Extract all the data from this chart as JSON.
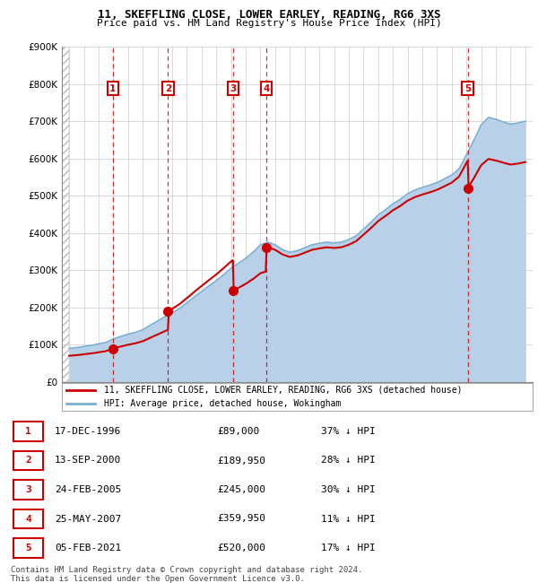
{
  "title1": "11, SKEFFLING CLOSE, LOWER EARLEY, READING, RG6 3XS",
  "title2": "Price paid vs. HM Land Registry's House Price Index (HPI)",
  "transactions": [
    {
      "num": 1,
      "date": "17-DEC-1996",
      "price": 89000,
      "year": 1996.96,
      "pct": "37% ↓ HPI"
    },
    {
      "num": 2,
      "date": "13-SEP-2000",
      "price": 189950,
      "year": 2000.71,
      "pct": "28% ↓ HPI"
    },
    {
      "num": 3,
      "date": "24-FEB-2005",
      "price": 245000,
      "year": 2005.15,
      "pct": "30% ↓ HPI"
    },
    {
      "num": 4,
      "date": "25-MAY-2007",
      "price": 359950,
      "year": 2007.4,
      "pct": "11% ↓ HPI"
    },
    {
      "num": 5,
      "date": "05-FEB-2021",
      "price": 520000,
      "year": 2021.09,
      "pct": "17% ↓ HPI"
    }
  ],
  "legend_line1": "11, SKEFFLING CLOSE, LOWER EARLEY, READING, RG6 3XS (detached house)",
  "legend_line2": "HPI: Average price, detached house, Wokingham",
  "footer": "Contains HM Land Registry data © Crown copyright and database right 2024.\nThis data is licensed under the Open Government Licence v3.0.",
  "table_rows": [
    [
      "1",
      "17-DEC-1996",
      "£89,000",
      "37% ↓ HPI"
    ],
    [
      "2",
      "13-SEP-2000",
      "£189,950",
      "28% ↓ HPI"
    ],
    [
      "3",
      "24-FEB-2005",
      "£245,000",
      "30% ↓ HPI"
    ],
    [
      "4",
      "25-MAY-2007",
      "£359,950",
      "11% ↓ HPI"
    ],
    [
      "5",
      "05-FEB-2021",
      "£520,000",
      "17% ↓ HPI"
    ]
  ],
  "hpi_color": "#b8d0e8",
  "hpi_line_color": "#7aafd4",
  "price_color": "#cc0000",
  "marker_color": "#cc0000",
  "box_color": "#cc0000",
  "grid_color": "#cccccc",
  "bg_color": "#ffffff",
  "xmin": 1993.5,
  "xmax": 2025.5,
  "ymin": 0,
  "ymax": 900000,
  "hpi_years": [
    1994,
    1994.5,
    1995,
    1995.5,
    1996,
    1996.5,
    1997,
    1997.5,
    1998,
    1998.5,
    1999,
    1999.5,
    2000,
    2000.5,
    2001,
    2001.5,
    2002,
    2002.5,
    2003,
    2003.5,
    2004,
    2004.5,
    2005,
    2005.5,
    2006,
    2006.5,
    2007,
    2007.5,
    2008,
    2008.5,
    2009,
    2009.5,
    2010,
    2010.5,
    2011,
    2011.5,
    2012,
    2012.5,
    2013,
    2013.5,
    2014,
    2014.5,
    2015,
    2015.5,
    2016,
    2016.5,
    2017,
    2017.5,
    2018,
    2018.5,
    2019,
    2019.5,
    2020,
    2020.5,
    2021,
    2021.5,
    2022,
    2022.5,
    2023,
    2023.5,
    2024,
    2024.5,
    2025
  ],
  "hpi_values": [
    90000,
    92000,
    95000,
    98000,
    102000,
    106000,
    115000,
    122000,
    128000,
    133000,
    140000,
    152000,
    163000,
    175000,
    185000,
    197000,
    212000,
    228000,
    243000,
    258000,
    272000,
    288000,
    305000,
    318000,
    332000,
    348000,
    368000,
    375000,
    368000,
    355000,
    348000,
    352000,
    360000,
    368000,
    372000,
    375000,
    373000,
    375000,
    382000,
    392000,
    410000,
    428000,
    448000,
    462000,
    478000,
    490000,
    505000,
    515000,
    522000,
    528000,
    535000,
    545000,
    555000,
    572000,
    610000,
    648000,
    690000,
    710000,
    705000,
    698000,
    692000,
    695000,
    700000
  ]
}
